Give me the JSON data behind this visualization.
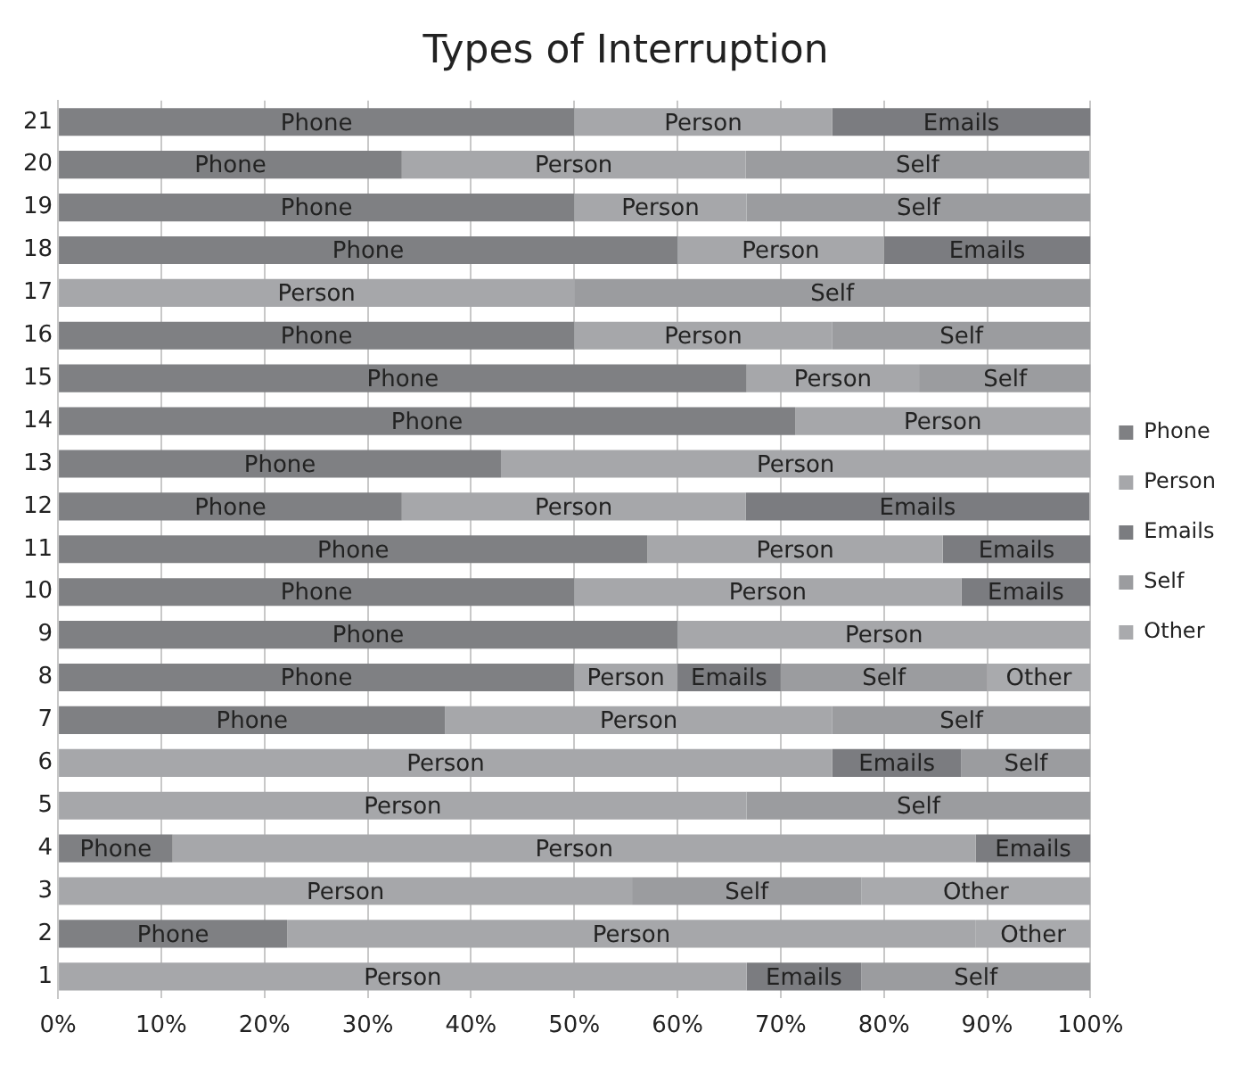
{
  "chart_data": {
    "type": "bar",
    "orientation": "horizontal",
    "stacked": true,
    "title": "Types of Interruption",
    "categories": [
      "21",
      "20",
      "19",
      "18",
      "17",
      "16",
      "15",
      "14",
      "13",
      "12",
      "11",
      "10",
      "9",
      "8",
      "7",
      "6",
      "5",
      "4",
      "3",
      "2",
      "1"
    ],
    "series": [
      {
        "name": "Phone",
        "color": "#7f8083",
        "values": [
          50,
          33.3,
          50,
          60,
          null,
          50,
          66.7,
          71.4,
          42.9,
          33.3,
          57.1,
          50,
          60,
          50,
          37.5,
          null,
          null,
          11.1,
          null,
          22.2,
          null
        ]
      },
      {
        "name": "Person",
        "color": "#a6a7aa",
        "values": [
          25,
          33.3,
          16.7,
          20,
          50,
          25,
          16.7,
          28.6,
          57.1,
          33.3,
          28.6,
          37.5,
          40,
          10,
          37.5,
          75,
          66.7,
          77.8,
          55.6,
          66.7,
          66.7
        ]
      },
      {
        "name": "Emails",
        "color": "#7b7c80",
        "values": [
          25,
          null,
          null,
          20,
          null,
          null,
          null,
          null,
          null,
          33.3,
          14.3,
          12.5,
          null,
          10,
          null,
          12.5,
          null,
          11.1,
          null,
          null,
          11.1
        ]
      },
      {
        "name": "Self",
        "color": "#9b9c9f",
        "values": [
          null,
          33.3,
          33.3,
          null,
          50,
          25,
          16.7,
          null,
          null,
          null,
          null,
          null,
          null,
          20,
          25,
          12.5,
          33.3,
          null,
          22.2,
          null,
          22.2
        ]
      },
      {
        "name": "Other",
        "color": "#a9aaad",
        "values": [
          null,
          null,
          null,
          null,
          null,
          null,
          null,
          null,
          null,
          null,
          null,
          null,
          null,
          10,
          null,
          null,
          null,
          null,
          22.2,
          11.1,
          null
        ]
      }
    ],
    "xlim": [
      0,
      100
    ],
    "xticks": [
      {
        "value": 0,
        "label": "0%"
      },
      {
        "value": 10,
        "label": "10%"
      },
      {
        "value": 20,
        "label": "20%"
      },
      {
        "value": 30,
        "label": "30%"
      },
      {
        "value": 40,
        "label": "40%"
      },
      {
        "value": 50,
        "label": "50%"
      },
      {
        "value": 60,
        "label": "60%"
      },
      {
        "value": 70,
        "label": "70%"
      },
      {
        "value": 80,
        "label": "80%"
      },
      {
        "value": 90,
        "label": "90%"
      },
      {
        "value": 100,
        "label": "100%"
      }
    ],
    "grid": "x",
    "legend": "right"
  }
}
